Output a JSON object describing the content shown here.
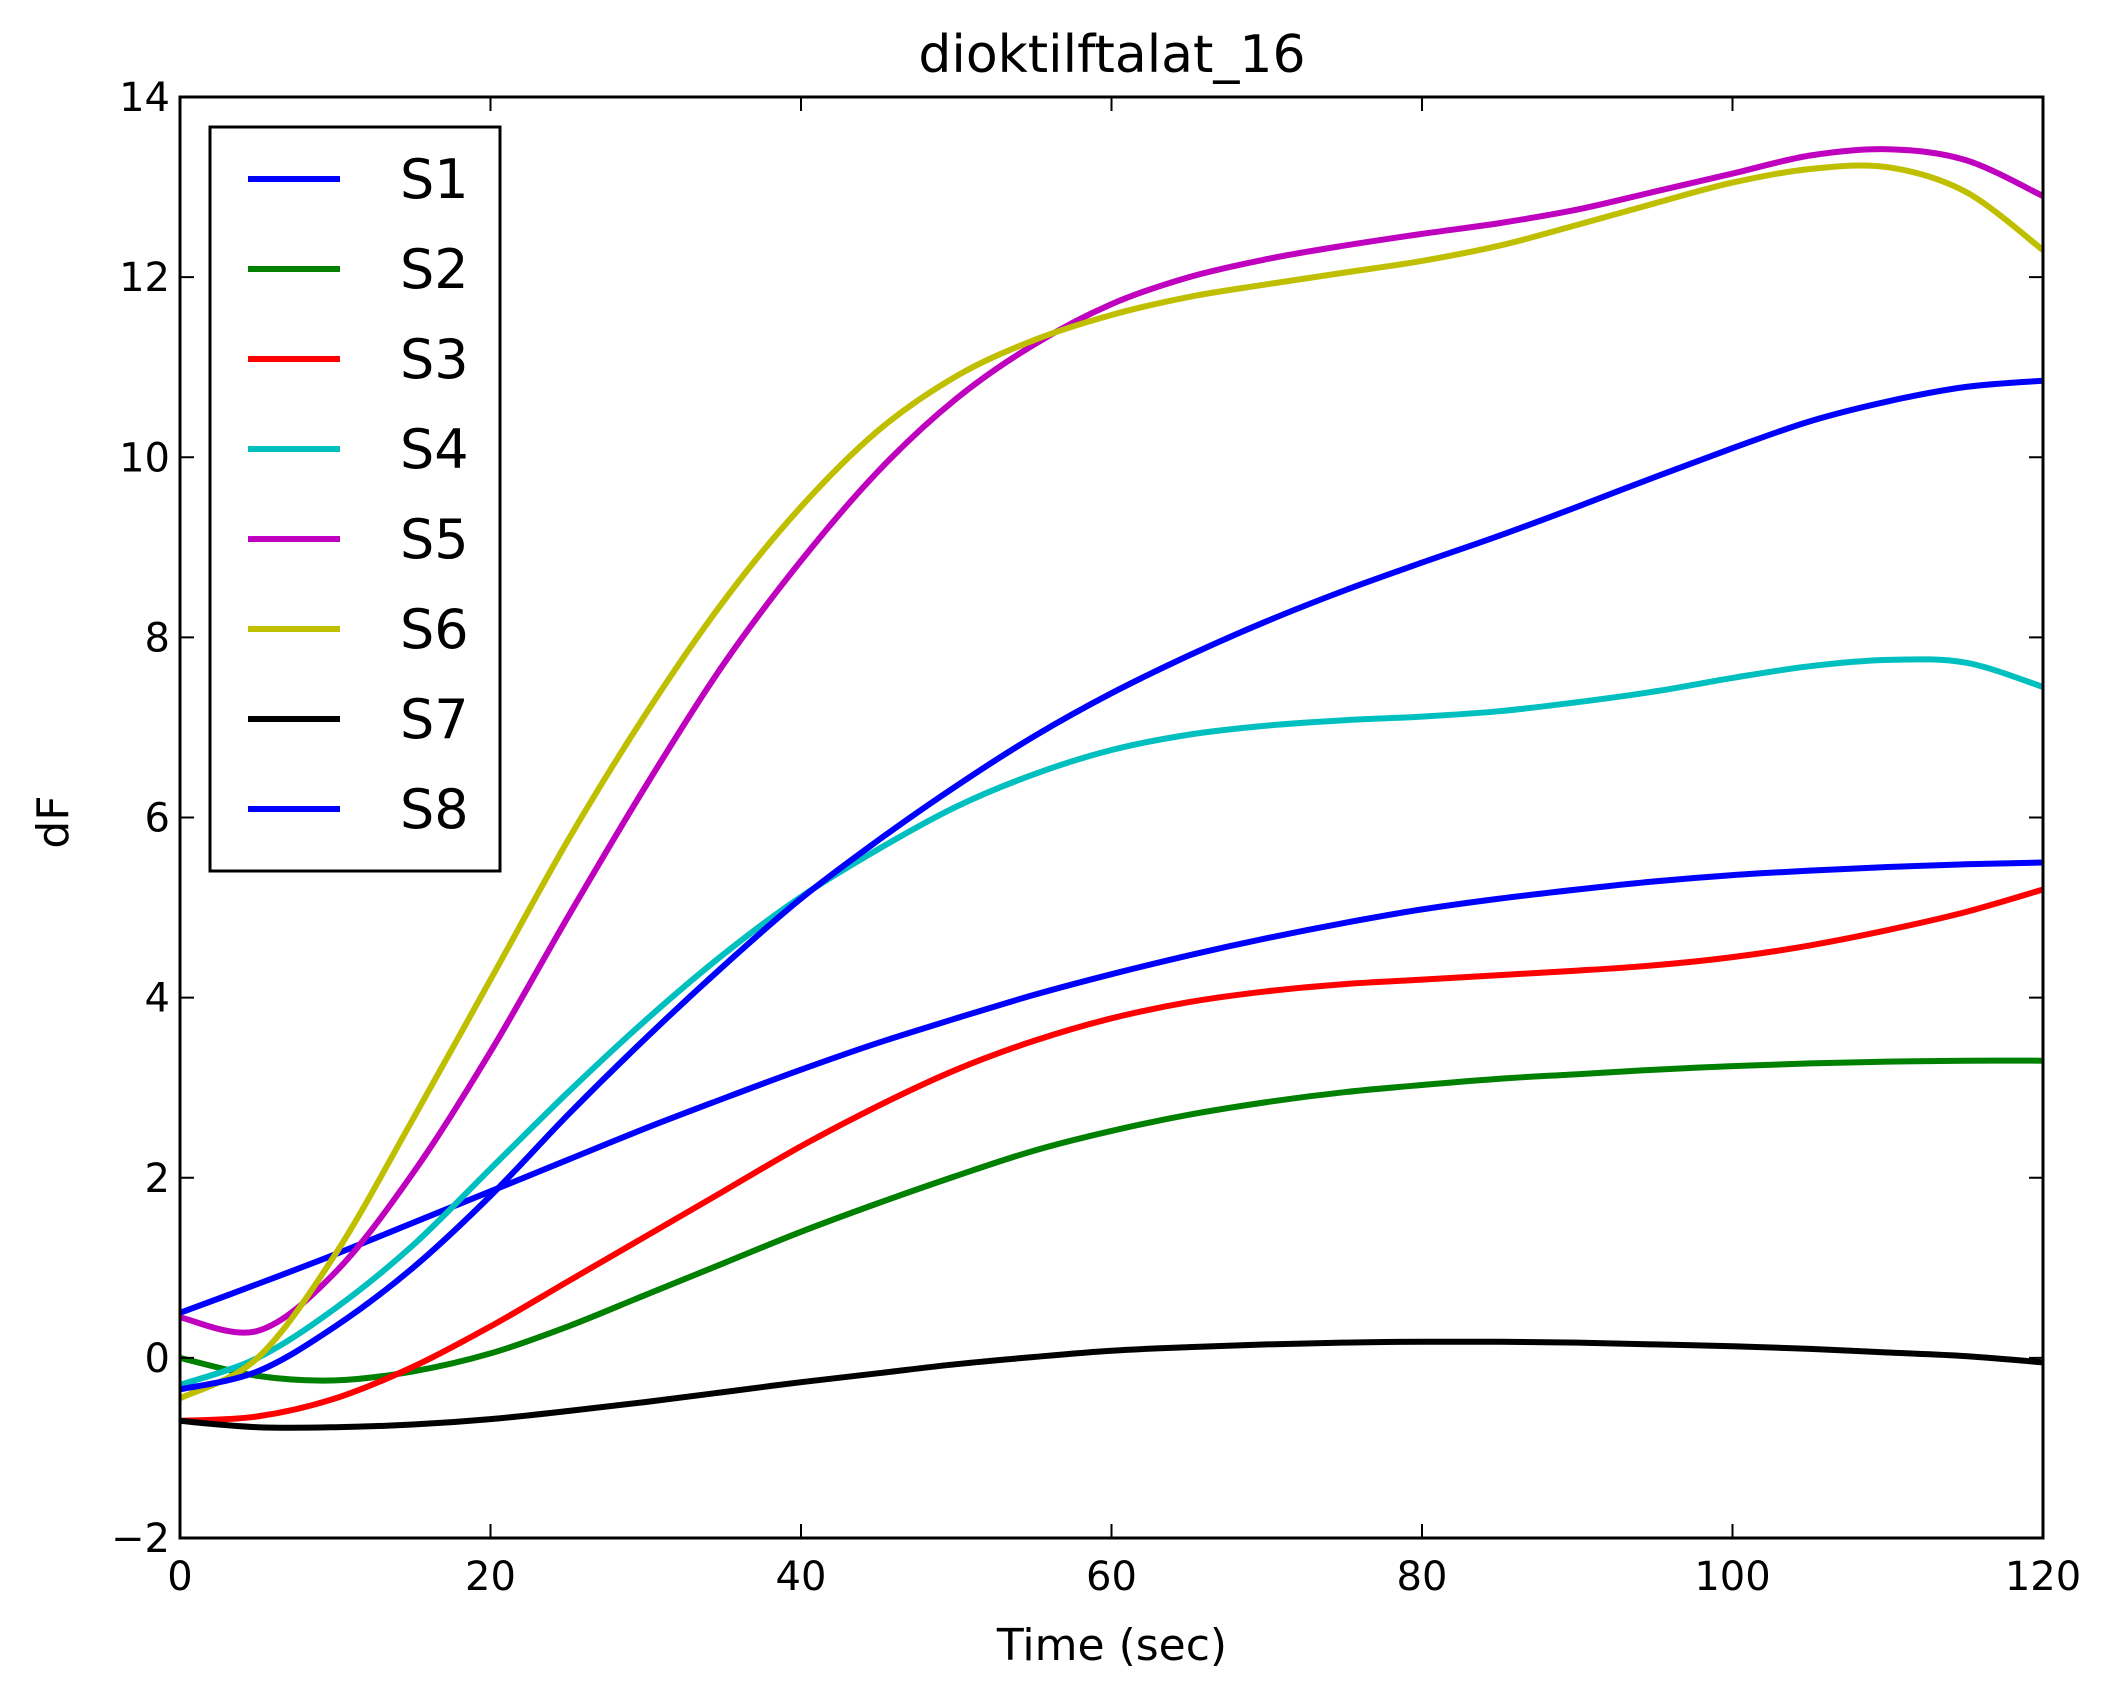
{
  "chart_data": {
    "type": "line",
    "title": "dioktilftalat_16",
    "xlabel": "Time (sec)",
    "ylabel": "dF",
    "xlim": [
      0,
      120
    ],
    "ylim": [
      -2,
      14
    ],
    "xticks": [
      0,
      20,
      40,
      60,
      80,
      100,
      120
    ],
    "xtick_labels": [
      "0",
      "20",
      "40",
      "60",
      "80",
      "100",
      "120"
    ],
    "yticks": [
      -2,
      0,
      2,
      4,
      6,
      8,
      10,
      12,
      14
    ],
    "ytick_labels": [
      "−2",
      "0",
      "2",
      "4",
      "6",
      "8",
      "10",
      "12",
      "14"
    ],
    "grid": false,
    "legend_position": "top-left",
    "x": [
      0,
      5,
      10,
      15,
      20,
      25,
      30,
      35,
      40,
      45,
      50,
      55,
      60,
      65,
      70,
      75,
      80,
      85,
      90,
      95,
      100,
      105,
      110,
      115,
      120
    ],
    "series": [
      {
        "name": "S1",
        "color": "#0000ff",
        "values": [
          0.5,
          0.82,
          1.15,
          1.5,
          1.85,
          2.2,
          2.55,
          2.88,
          3.2,
          3.5,
          3.77,
          4.03,
          4.26,
          4.47,
          4.66,
          4.83,
          4.98,
          5.1,
          5.2,
          5.29,
          5.36,
          5.41,
          5.45,
          5.48,
          5.5
        ]
      },
      {
        "name": "S2",
        "color": "#008000",
        "values": [
          0.0,
          -0.2,
          -0.25,
          -0.15,
          0.05,
          0.35,
          0.7,
          1.05,
          1.4,
          1.72,
          2.02,
          2.3,
          2.52,
          2.7,
          2.84,
          2.95,
          3.03,
          3.1,
          3.15,
          3.2,
          3.24,
          3.27,
          3.29,
          3.3,
          3.3
        ]
      },
      {
        "name": "S3",
        "color": "#ff0000",
        "values": [
          -0.7,
          -0.65,
          -0.45,
          -0.1,
          0.35,
          0.85,
          1.35,
          1.85,
          2.35,
          2.8,
          3.2,
          3.52,
          3.77,
          3.95,
          4.07,
          4.15,
          4.2,
          4.25,
          4.3,
          4.36,
          4.45,
          4.58,
          4.75,
          4.95,
          5.2
        ]
      },
      {
        "name": "S4",
        "color": "#00bfbf",
        "values": [
          -0.3,
          0.0,
          0.55,
          1.25,
          2.1,
          2.95,
          3.75,
          4.48,
          5.12,
          5.65,
          6.12,
          6.48,
          6.75,
          6.92,
          7.02,
          7.08,
          7.12,
          7.18,
          7.28,
          7.4,
          7.55,
          7.68,
          7.75,
          7.72,
          7.45
        ]
      },
      {
        "name": "S5",
        "color": "#bf00bf",
        "values": [
          0.45,
          0.3,
          0.95,
          2.05,
          3.4,
          4.9,
          6.35,
          7.7,
          8.85,
          9.85,
          10.65,
          11.25,
          11.7,
          12.0,
          12.2,
          12.35,
          12.48,
          12.6,
          12.75,
          12.95,
          13.15,
          13.35,
          13.42,
          13.3,
          12.9
        ]
      },
      {
        "name": "S6",
        "color": "#bfbf00",
        "values": [
          -0.45,
          0.0,
          1.15,
          2.65,
          4.2,
          5.75,
          7.15,
          8.4,
          9.45,
          10.3,
          10.9,
          11.3,
          11.58,
          11.78,
          11.92,
          12.05,
          12.18,
          12.35,
          12.58,
          12.82,
          13.05,
          13.2,
          13.22,
          12.95,
          12.3
        ]
      },
      {
        "name": "S7",
        "color": "#000000",
        "values": [
          -0.7,
          -0.77,
          -0.77,
          -0.74,
          -0.68,
          -0.59,
          -0.49,
          -0.38,
          -0.27,
          -0.17,
          -0.07,
          0.01,
          0.08,
          0.12,
          0.15,
          0.17,
          0.18,
          0.18,
          0.17,
          0.15,
          0.13,
          0.1,
          0.06,
          0.02,
          -0.05
        ]
      },
      {
        "name": "S8",
        "color": "#0000ff",
        "values": [
          -0.35,
          -0.15,
          0.35,
          1.0,
          1.8,
          2.7,
          3.55,
          4.35,
          5.1,
          5.75,
          6.35,
          6.9,
          7.38,
          7.8,
          8.18,
          8.52,
          8.83,
          9.13,
          9.45,
          9.78,
          10.1,
          10.4,
          10.62,
          10.78,
          10.85
        ]
      }
    ]
  }
}
